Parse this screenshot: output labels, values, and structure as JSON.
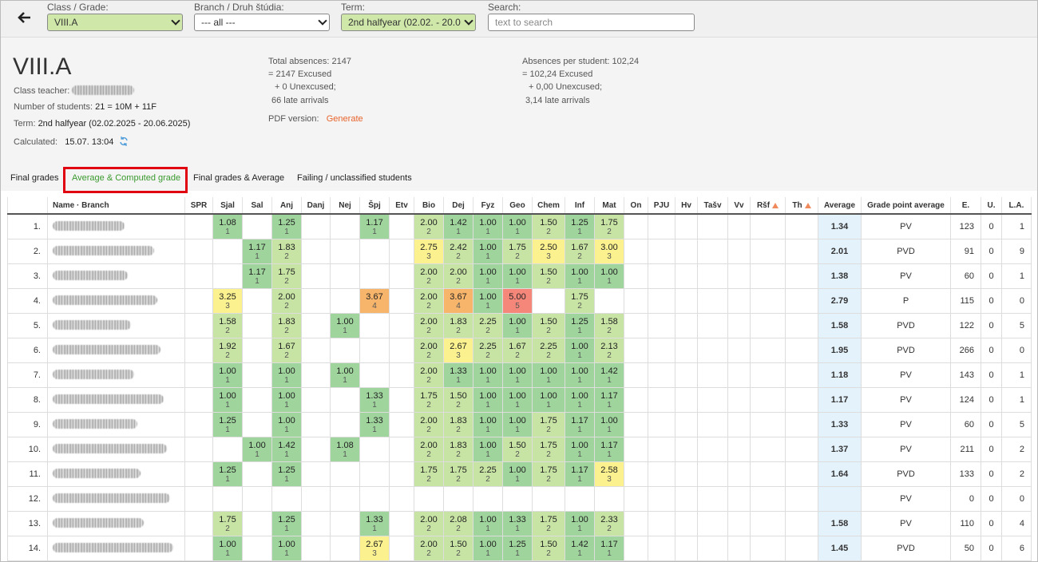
{
  "toolbar": {
    "class_label": "Class / Grade:",
    "class_value": "VIII.A",
    "branch_label": "Branch / Druh štúdia:",
    "branch_value": "--- all ---",
    "term_label": "Term:",
    "term_value": "2nd halfyear (02.02. - 20.0",
    "search_label": "Search:",
    "search_placeholder": "text to search"
  },
  "summary": {
    "title": "VIII.A",
    "teacher_label": "Class teacher:",
    "students_label": "Number of students:",
    "students_value": "21 = 10M + 11F",
    "term_label": "Term:",
    "term_value": "2nd halfyear (02.02.2025 - 20.06.2025)",
    "calculated_label": "Calculated:",
    "calculated_value": "15.07. 13:04",
    "absences": [
      "Total absences: 2147",
      "= 2147 Excused",
      "+ 0 Unexcused;",
      "66 late arrivals"
    ],
    "pdf_label": "PDF version:",
    "pdf_link": "Generate",
    "per_student": [
      "Absences per student: 102,24",
      "= 102,24 Excused",
      "+ 0,00 Unexcused;",
      "3,14 late arrivals"
    ]
  },
  "tabs": [
    {
      "label": "Final grades"
    },
    {
      "label": "Average & Computed grade",
      "active": true
    },
    {
      "label": "Final grades & Average"
    },
    {
      "label": "Failing / unclassified students"
    }
  ],
  "table": {
    "columns": [
      "Name · Branch",
      "SPR",
      "Sjal",
      "Sal",
      "Anj",
      "Danj",
      "Nej",
      "Špj",
      "Etv",
      "Bio",
      "Dej",
      "Fyz",
      "Geo",
      "Chem",
      "Inf",
      "Mat",
      "On",
      "PJU",
      "Hv",
      "Tašv",
      "Vv",
      {
        "label": "Ršf",
        "warning": true
      },
      {
        "label": "Th",
        "warning": true
      },
      "Average",
      "Grade point average",
      "E.",
      "U.",
      "L.A."
    ],
    "rows": [
      {
        "no": "1.",
        "grades": [
          null,
          [
            "1.08",
            1
          ],
          null,
          [
            "1.25",
            1
          ],
          null,
          null,
          [
            "1.17",
            1
          ],
          null,
          [
            "2.00",
            2
          ],
          [
            "1.42",
            1
          ],
          [
            "1.00",
            1
          ],
          [
            "1.00",
            1
          ],
          [
            "1.50",
            2
          ],
          [
            "1.25",
            1
          ],
          [
            "1.75",
            2
          ],
          null,
          null,
          null,
          null,
          null,
          null,
          null
        ],
        "average": "1.34",
        "gpa": "PV",
        "e": 123,
        "u": 0,
        "la": 1
      },
      {
        "no": "2.",
        "grades": [
          null,
          null,
          [
            "1.17",
            1
          ],
          [
            "1.83",
            2
          ],
          null,
          null,
          null,
          null,
          [
            "2.75",
            3
          ],
          [
            "2.42",
            2
          ],
          [
            "1.00",
            1
          ],
          [
            "1.75",
            2
          ],
          [
            "2.50",
            3
          ],
          [
            "1.67",
            2
          ],
          [
            "3.00",
            3
          ],
          null,
          null,
          null,
          null,
          null,
          null,
          null
        ],
        "average": "2.01",
        "gpa": "PVD",
        "e": 91,
        "u": 0,
        "la": 9
      },
      {
        "no": "3.",
        "grades": [
          null,
          null,
          [
            "1.17",
            1
          ],
          [
            "1.75",
            2
          ],
          null,
          null,
          null,
          null,
          [
            "2.00",
            2
          ],
          [
            "2.00",
            2
          ],
          [
            "1.00",
            1
          ],
          [
            "1.00",
            1
          ],
          [
            "1.50",
            2
          ],
          [
            "1.00",
            1
          ],
          [
            "1.00",
            1
          ],
          null,
          null,
          null,
          null,
          null,
          null,
          null
        ],
        "average": "1.38",
        "gpa": "PV",
        "e": 60,
        "u": 0,
        "la": 1
      },
      {
        "no": "4.",
        "grades": [
          null,
          [
            "3.25",
            3
          ],
          null,
          [
            "2.00",
            2
          ],
          null,
          null,
          [
            "3.67",
            4
          ],
          null,
          [
            "2.00",
            2
          ],
          [
            "3.67",
            4
          ],
          [
            "1.00",
            1
          ],
          [
            "5.00",
            5
          ],
          null,
          [
            "1.75",
            2
          ],
          null,
          null,
          null,
          null,
          null,
          null,
          null,
          null
        ],
        "average": "2.79",
        "gpa": "P",
        "e": 115,
        "u": 0,
        "la": 0
      },
      {
        "no": "5.",
        "grades": [
          null,
          [
            "1.58",
            2
          ],
          null,
          [
            "1.83",
            2
          ],
          null,
          [
            "1.00",
            1
          ],
          null,
          null,
          [
            "2.00",
            2
          ],
          [
            "1.83",
            2
          ],
          [
            "2.25",
            2
          ],
          [
            "1.00",
            1
          ],
          [
            "1.50",
            2
          ],
          [
            "1.25",
            1
          ],
          [
            "1.58",
            2
          ],
          null,
          null,
          null,
          null,
          null,
          null,
          null
        ],
        "average": "1.58",
        "gpa": "PVD",
        "e": 122,
        "u": 0,
        "la": 5
      },
      {
        "no": "6.",
        "grades": [
          null,
          [
            "1.92",
            2
          ],
          null,
          [
            "1.67",
            2
          ],
          null,
          null,
          null,
          null,
          [
            "2.00",
            2
          ],
          [
            "2.67",
            3
          ],
          [
            "2.25",
            2
          ],
          [
            "1.67",
            2
          ],
          [
            "2.25",
            2
          ],
          [
            "1.00",
            1
          ],
          [
            "2.13",
            2
          ],
          null,
          null,
          null,
          null,
          null,
          null,
          null
        ],
        "average": "1.95",
        "gpa": "PVD",
        "e": 266,
        "u": 0,
        "la": 0
      },
      {
        "no": "7.",
        "grades": [
          null,
          [
            "1.00",
            1
          ],
          null,
          [
            "1.00",
            1
          ],
          null,
          [
            "1.00",
            1
          ],
          null,
          null,
          [
            "2.00",
            2
          ],
          [
            "1.33",
            1
          ],
          [
            "1.00",
            1
          ],
          [
            "1.00",
            1
          ],
          [
            "1.00",
            1
          ],
          [
            "1.00",
            1
          ],
          [
            "1.42",
            1
          ],
          null,
          null,
          null,
          null,
          null,
          null,
          null
        ],
        "average": "1.18",
        "gpa": "PV",
        "e": 143,
        "u": 0,
        "la": 1
      },
      {
        "no": "8.",
        "grades": [
          null,
          [
            "1.00",
            1
          ],
          null,
          [
            "1.00",
            1
          ],
          null,
          null,
          [
            "1.33",
            1
          ],
          null,
          [
            "1.75",
            2
          ],
          [
            "1.50",
            2
          ],
          [
            "1.00",
            1
          ],
          [
            "1.00",
            1
          ],
          [
            "1.00",
            1
          ],
          [
            "1.00",
            1
          ],
          [
            "1.17",
            1
          ],
          null,
          null,
          null,
          null,
          null,
          null,
          null
        ],
        "average": "1.17",
        "gpa": "PV",
        "e": 124,
        "u": 0,
        "la": 1
      },
      {
        "no": "9.",
        "grades": [
          null,
          [
            "1.25",
            1
          ],
          null,
          [
            "1.00",
            1
          ],
          null,
          null,
          [
            "1.33",
            1
          ],
          null,
          [
            "2.00",
            2
          ],
          [
            "1.83",
            2
          ],
          [
            "1.00",
            1
          ],
          [
            "1.00",
            1
          ],
          [
            "1.75",
            2
          ],
          [
            "1.17",
            1
          ],
          [
            "1.00",
            1
          ],
          null,
          null,
          null,
          null,
          null,
          null,
          null
        ],
        "average": "1.33",
        "gpa": "PV",
        "e": 60,
        "u": 0,
        "la": 5
      },
      {
        "no": "10.",
        "grades": [
          null,
          null,
          [
            "1.00",
            1
          ],
          [
            "1.42",
            1
          ],
          null,
          [
            "1.08",
            1
          ],
          null,
          null,
          [
            "2.00",
            2
          ],
          [
            "1.83",
            2
          ],
          [
            "1.00",
            1
          ],
          [
            "1.50",
            2
          ],
          [
            "1.75",
            2
          ],
          [
            "1.00",
            1
          ],
          [
            "1.17",
            1
          ],
          null,
          null,
          null,
          null,
          null,
          null,
          null
        ],
        "average": "1.37",
        "gpa": "PV",
        "e": 211,
        "u": 0,
        "la": 2
      },
      {
        "no": "11.",
        "grades": [
          null,
          [
            "1.25",
            1
          ],
          null,
          [
            "1.25",
            1
          ],
          null,
          null,
          null,
          null,
          [
            "1.75",
            2
          ],
          [
            "1.75",
            2
          ],
          [
            "2.25",
            2
          ],
          [
            "1.00",
            1
          ],
          [
            "1.75",
            2
          ],
          [
            "1.17",
            1
          ],
          [
            "2.58",
            3
          ],
          null,
          null,
          null,
          null,
          null,
          null,
          null
        ],
        "average": "1.64",
        "gpa": "PVD",
        "e": 133,
        "u": 0,
        "la": 2
      },
      {
        "no": "12.",
        "grades": [
          null,
          null,
          null,
          null,
          null,
          null,
          null,
          null,
          null,
          null,
          null,
          null,
          null,
          null,
          null,
          null,
          null,
          null,
          null,
          null,
          null,
          null
        ],
        "average": null,
        "gpa": "PV",
        "e": 0,
        "u": 0,
        "la": 0
      },
      {
        "no": "13.",
        "grades": [
          null,
          [
            "1.75",
            2
          ],
          null,
          [
            "1.25",
            1
          ],
          null,
          null,
          [
            "1.33",
            1
          ],
          null,
          [
            "2.00",
            2
          ],
          [
            "2.08",
            2
          ],
          [
            "1.00",
            1
          ],
          [
            "1.33",
            1
          ],
          [
            "1.75",
            2
          ],
          [
            "1.00",
            1
          ],
          [
            "2.33",
            2
          ],
          null,
          null,
          null,
          null,
          null,
          null,
          null
        ],
        "average": "1.58",
        "gpa": "PV",
        "e": 110,
        "u": 0,
        "la": 4
      },
      {
        "no": "14.",
        "grades": [
          null,
          [
            "1.00",
            1
          ],
          null,
          [
            "1.00",
            1
          ],
          null,
          null,
          [
            "2.67",
            3
          ],
          null,
          [
            "2.00",
            2
          ],
          [
            "1.50",
            2
          ],
          [
            "1.00",
            1
          ],
          [
            "1.25",
            1
          ],
          [
            "1.50",
            2
          ],
          [
            "1.42",
            1
          ],
          [
            "1.17",
            1
          ],
          null,
          null,
          null,
          null,
          null,
          null,
          null
        ],
        "average": "1.45",
        "gpa": "PVD",
        "e": 50,
        "u": 0,
        "la": 6
      }
    ]
  }
}
